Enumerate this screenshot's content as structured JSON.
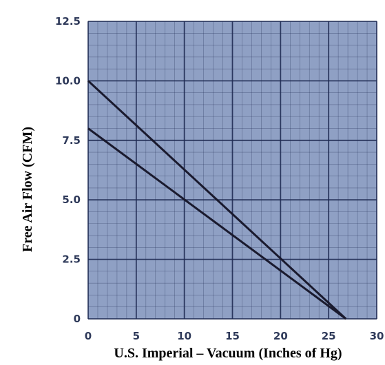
{
  "chart_data": {
    "type": "line",
    "title": "",
    "xlabel": "U.S. Imperial – Vacuum (Inches of Hg)",
    "ylabel": "Free Air Flow (CFM)",
    "xlim": [
      0,
      30
    ],
    "ylim": [
      0,
      12.5
    ],
    "x_ticks": [
      "0",
      "5",
      "10",
      "15",
      "20",
      "25",
      "30"
    ],
    "y_ticks": [
      "0",
      "2.5",
      "5.0",
      "7.5",
      "10.0",
      "12.5"
    ],
    "grid": true,
    "series": [
      {
        "x": [
          0,
          26.8
        ],
        "y": [
          10.0,
          0
        ]
      },
      {
        "x": [
          0,
          26.8
        ],
        "y": [
          8.0,
          0
        ]
      }
    ],
    "colors": {
      "plot_background": "#8fa0c4",
      "grid": "#1f2a52",
      "line": "#1a1a2e",
      "tick_text": "#2f3a5a"
    }
  }
}
